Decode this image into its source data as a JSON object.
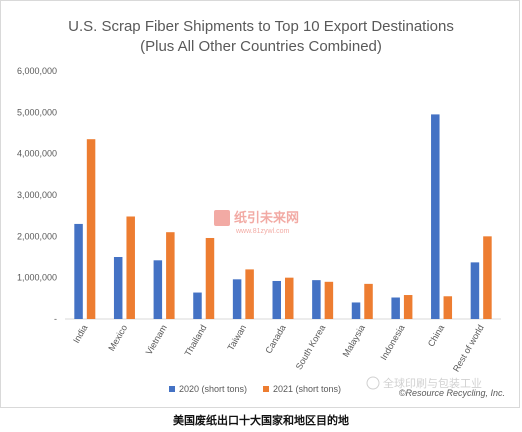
{
  "chart_data": {
    "type": "bar",
    "title": "U.S. Scrap Fiber Shipments to Top 10 Export Destinations",
    "subtitle": "(Plus All Other Countries Combined)",
    "categories": [
      "India",
      "Mexico",
      "Vietnam",
      "Thailand",
      "Taiwan",
      "Canada",
      "South Korea",
      "Malaysia",
      "Indonesia",
      "China",
      "Rest of world"
    ],
    "series": [
      {
        "name": "2020 (short tons)",
        "color": "#4472c4",
        "values": [
          2300000,
          1500000,
          1420000,
          640000,
          960000,
          920000,
          940000,
          400000,
          520000,
          4950000,
          1370000
        ]
      },
      {
        "name": "2021 (short tons)",
        "color": "#ed7d31",
        "values": [
          4350000,
          2480000,
          2100000,
          1960000,
          1200000,
          1000000,
          900000,
          850000,
          580000,
          550000,
          2000000
        ]
      }
    ],
    "ylim": [
      0,
      6000000
    ],
    "yticks": [
      "-",
      "1,000,000",
      "2,000,000",
      "3,000,000",
      "4,000,000",
      "5,000,000",
      "6,000,000"
    ],
    "legend_position": "bottom",
    "grid": false
  },
  "credit": "©Resource Recycling, Inc.",
  "watermark": {
    "brand": "纸引未来网",
    "url": "www.81zywl.com",
    "wechat": "全球印刷与包装工业"
  },
  "caption": "美国废纸出口十大国家和地区目的地"
}
